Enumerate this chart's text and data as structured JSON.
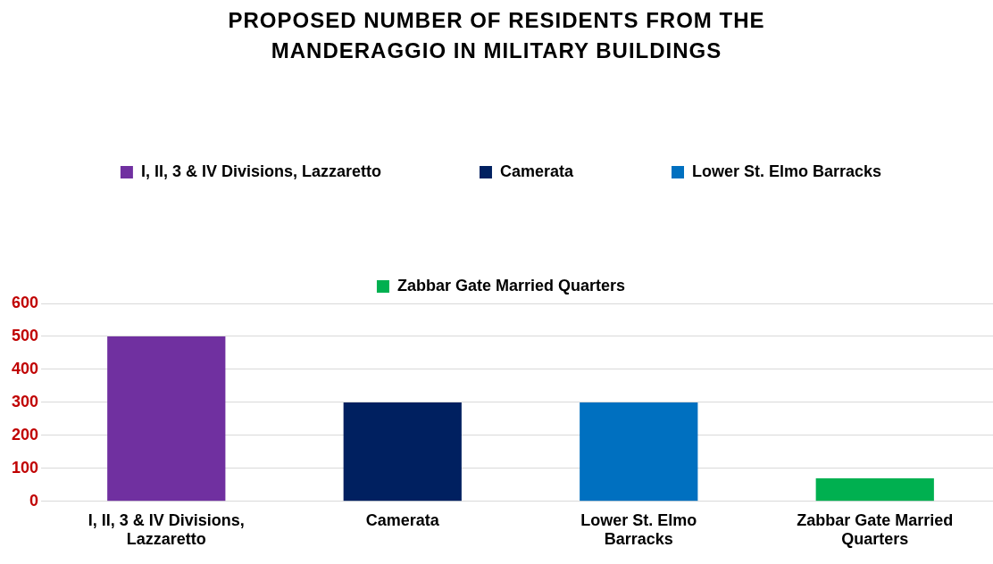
{
  "chart_data": {
    "type": "bar",
    "title": "PROPOSED NUMBER OF RESIDENTS FROM THE MANDERAGGIO IN MILITARY BUILDINGS",
    "categories": [
      "I, II, 3 & IV Divisions, Lazzaretto",
      "Camerata",
      "Lower St. Elmo Barracks",
      "Zabbar Gate Married Quarters"
    ],
    "series": [
      {
        "name": "I, II, 3 & IV Divisions, Lazzaretto",
        "color": "#7030a0",
        "values": [
          500,
          null,
          null,
          null
        ]
      },
      {
        "name": "Camerata",
        "color": "#002060",
        "values": [
          null,
          300,
          null,
          null
        ]
      },
      {
        "name": "Lower St. Elmo Barracks",
        "color": "#0070c0",
        "values": [
          null,
          null,
          300,
          null
        ]
      },
      {
        "name": "Zabbar Gate Married Quarters",
        "color": "#00b050",
        "values": [
          null,
          null,
          null,
          70
        ]
      }
    ],
    "ylim": [
      0,
      600
    ],
    "yticks": [
      0,
      100,
      200,
      300,
      400,
      500,
      600
    ],
    "grid": "y",
    "legend": "top"
  }
}
